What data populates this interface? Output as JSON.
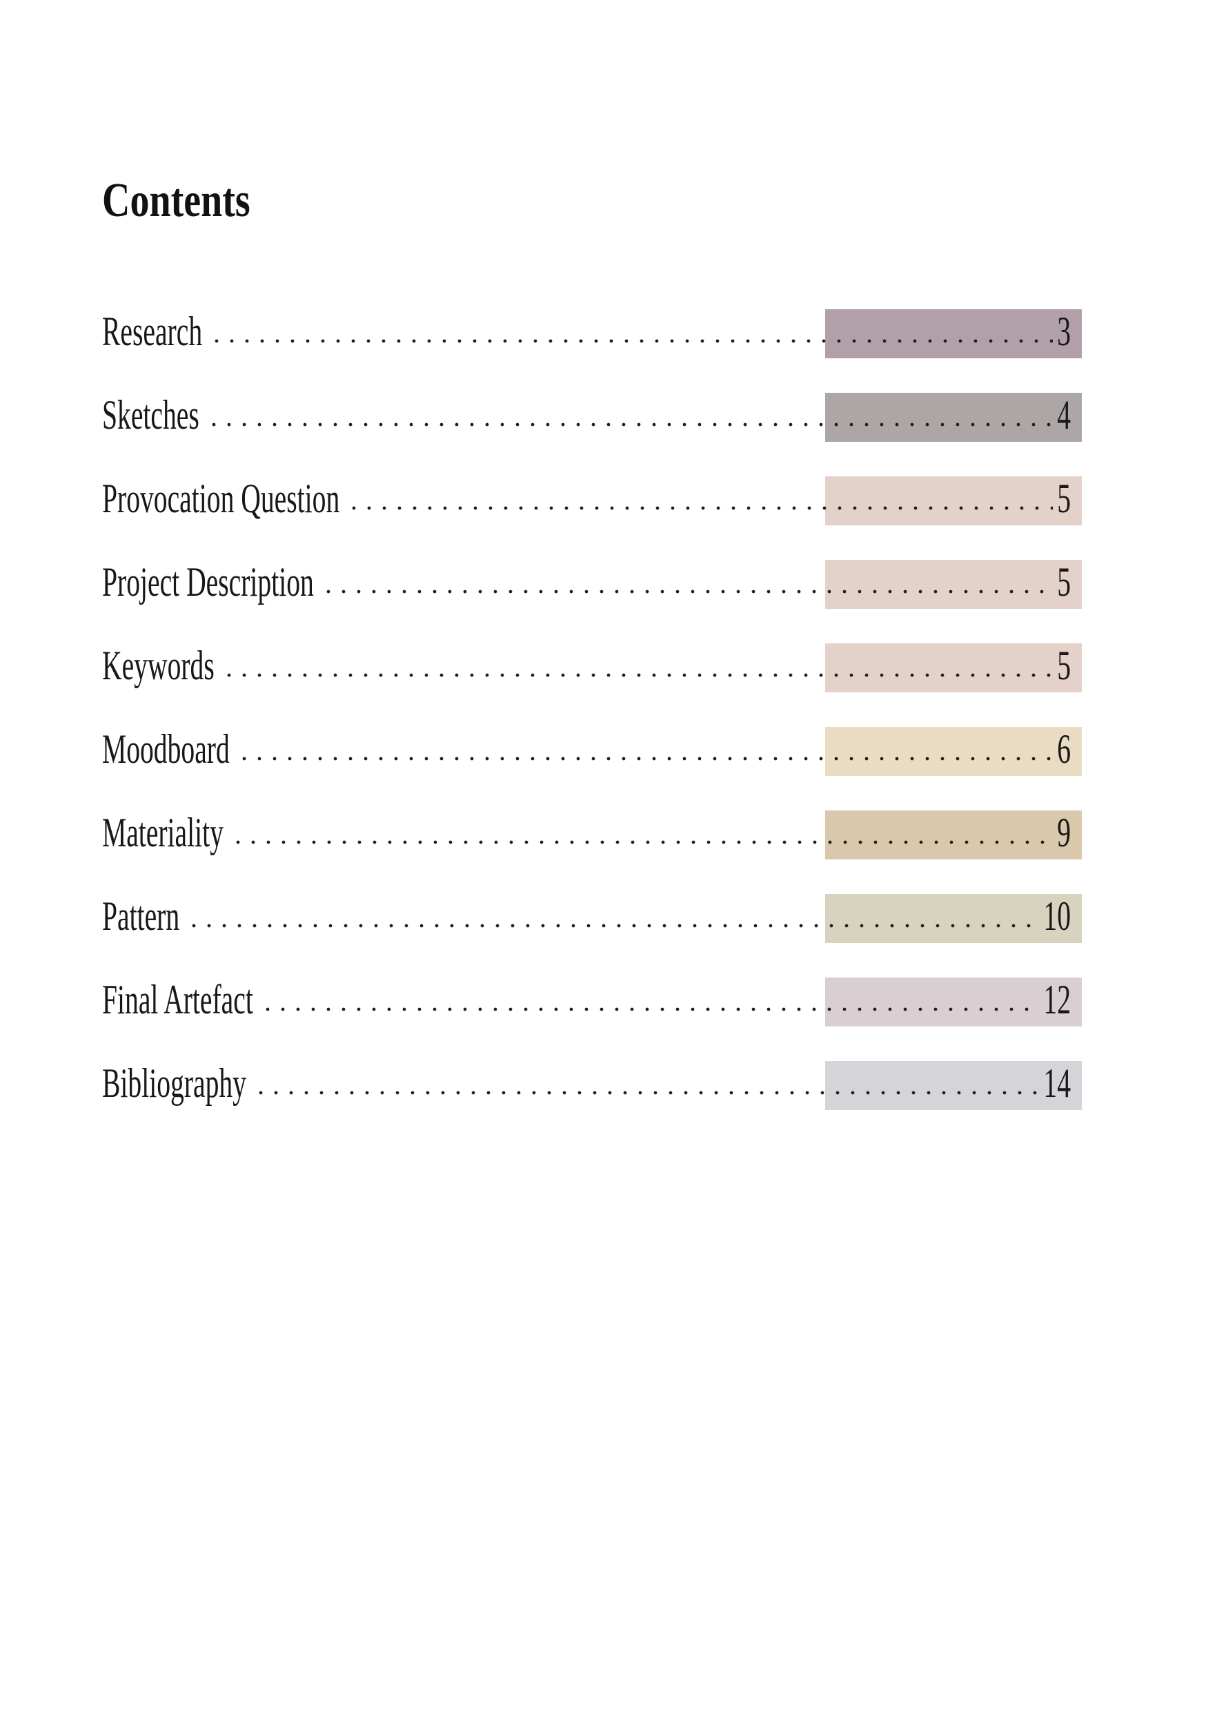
{
  "page": {
    "title": "Contents"
  },
  "toc": {
    "leader_dot_color": "#1c1c1c",
    "entries": [
      {
        "label": "Research",
        "page": "3",
        "highlight": "#b1a0aa"
      },
      {
        "label": "Sketches",
        "page": "4",
        "highlight": "#ada6a7"
      },
      {
        "label": "Provocation Question",
        "page": "5",
        "highlight": "#e4d2ca"
      },
      {
        "label": "Project Description",
        "page": "5",
        "highlight": "#e4d2ca"
      },
      {
        "label": "Keywords",
        "page": "5",
        "highlight": "#e4d1c9"
      },
      {
        "label": "Moodboard",
        "page": "6",
        "highlight": "#e9dcc3"
      },
      {
        "label": "Materiality",
        "page": "9",
        "highlight": "#d9c8ac"
      },
      {
        "label": "Pattern",
        "page": "10",
        "highlight": "#d8d3bf"
      },
      {
        "label": "Final Artefact",
        "page": "12",
        "highlight": "#d9ced2"
      },
      {
        "label": "Bibliography",
        "page": "14",
        "highlight": "#d5d4d8"
      }
    ]
  }
}
